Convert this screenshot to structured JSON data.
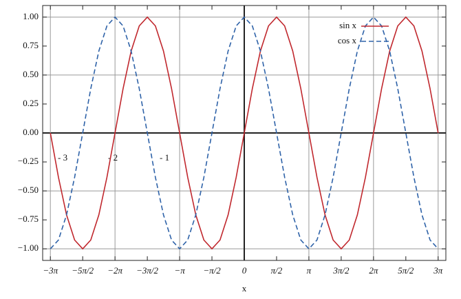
{
  "chart_data": {
    "type": "line",
    "x_label": "x",
    "xlim": [
      -9.8,
      9.8
    ],
    "ylim": [
      -1.1,
      1.1
    ],
    "grid": true,
    "legend_position": "upper right",
    "xticks": [
      {
        "value": -9.4248,
        "label": "−3π"
      },
      {
        "value": -7.854,
        "label": "−5π/2"
      },
      {
        "value": -6.2832,
        "label": "−2π"
      },
      {
        "value": -4.7124,
        "label": "−3π/2"
      },
      {
        "value": -3.1416,
        "label": "−π"
      },
      {
        "value": -1.5708,
        "label": "−π/2"
      },
      0,
      {
        "value": 1.5708,
        "label": "π/2"
      },
      {
        "value": 3.1416,
        "label": "π"
      },
      {
        "value": 4.7124,
        "label": "3π/2"
      },
      {
        "value": 6.2832,
        "label": "2π"
      },
      {
        "value": 7.854,
        "label": "5π/2"
      },
      {
        "value": 9.4248,
        "label": "3π"
      }
    ],
    "yticks": [
      {
        "value": -1,
        "label": "−1.00"
      },
      {
        "value": -0.75,
        "label": "−0.75"
      },
      {
        "value": -0.5,
        "label": "−0.50"
      },
      {
        "value": -0.25,
        "label": "−0.25"
      },
      {
        "value": 0,
        "label": "0.00"
      },
      {
        "value": 0.25,
        "label": "0.25"
      },
      {
        "value": 0.5,
        "label": "0.50"
      },
      {
        "value": 0.75,
        "label": "0.75"
      },
      {
        "value": 1,
        "label": "1.00"
      }
    ],
    "annotations": [
      "- 3",
      "- 2",
      "- 1"
    ],
    "x": [
      -9.4248,
      -9.0321,
      -8.6394,
      -8.2467,
      -7.854,
      -7.4613,
      -7.0686,
      -6.6759,
      -6.2832,
      -5.8905,
      -5.4978,
      -5.1051,
      -4.7124,
      -4.3197,
      -3.927,
      -3.5343,
      -3.1416,
      -2.7489,
      -2.3562,
      -1.9635,
      -1.5708,
      -1.1781,
      -0.7854,
      -0.3927,
      0,
      0.3927,
      0.7854,
      1.1781,
      1.5708,
      1.9635,
      2.3562,
      2.7489,
      3.1416,
      3.5343,
      3.927,
      4.3197,
      4.7124,
      5.1051,
      5.4978,
      5.8905,
      6.2832,
      6.6759,
      7.0686,
      7.4613,
      7.854,
      8.2467,
      8.6394,
      9.0321,
      9.4248
    ],
    "series": [
      {
        "name": "sin x",
        "color": "#c0272d",
        "dash": false,
        "values": [
          0,
          -0.3827,
          -0.7071,
          -0.9239,
          -1,
          -0.9239,
          -0.7071,
          -0.3827,
          0,
          0.3827,
          0.7071,
          0.9239,
          1,
          0.9239,
          0.7071,
          0.3827,
          0,
          -0.3827,
          -0.7071,
          -0.9239,
          -1,
          -0.9239,
          -0.7071,
          -0.3827,
          0,
          0.3827,
          0.7071,
          0.9239,
          1,
          0.9239,
          0.7071,
          0.3827,
          0,
          -0.3827,
          -0.7071,
          -0.9239,
          -1,
          -0.9239,
          -0.7071,
          -0.3827,
          0,
          0.3827,
          0.7071,
          0.9239,
          1,
          0.9239,
          0.7071,
          0.3827,
          0
        ]
      },
      {
        "name": "cos x",
        "color": "#2e62a8",
        "dash": true,
        "values": [
          -1,
          -0.9239,
          -0.7071,
          -0.3827,
          0,
          0.3827,
          0.7071,
          0.9239,
          1,
          0.9239,
          0.7071,
          0.3827,
          0,
          -0.3827,
          -0.7071,
          -0.9239,
          -1,
          -0.9239,
          -0.7071,
          -0.3827,
          0,
          0.3827,
          0.7071,
          0.9239,
          1,
          0.9239,
          0.7071,
          0.3827,
          0,
          -0.3827,
          -0.7071,
          -0.9239,
          -1,
          -0.9239,
          -0.7071,
          -0.3827,
          0,
          0.3827,
          0.7071,
          0.9239,
          1,
          0.9239,
          0.7071,
          0.3827,
          0,
          -0.3827,
          -0.7071,
          -0.9239,
          -1
        ]
      }
    ]
  }
}
